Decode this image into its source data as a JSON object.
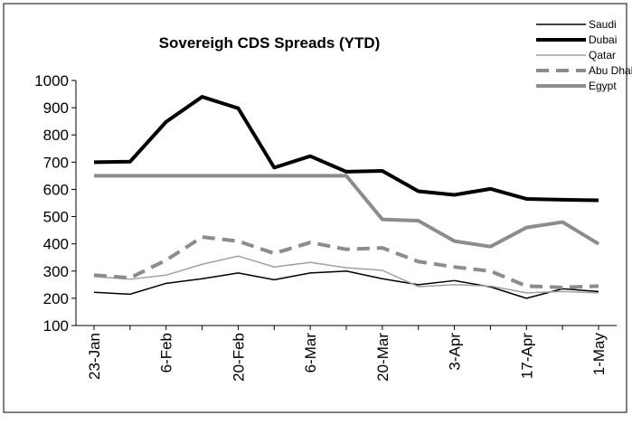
{
  "chart_data": {
    "type": "line",
    "title": "Sovereigh CDS Spreads (YTD)",
    "categories": [
      "23-Jan",
      null,
      "6-Feb",
      null,
      "20-Feb",
      null,
      "6-Mar",
      null,
      "20-Mar",
      null,
      "3-Apr",
      null,
      "17-Apr",
      null,
      "1-May"
    ],
    "series": [
      {
        "name": "Saudi",
        "color": "#000000",
        "width": 1.5,
        "dash": false,
        "values": [
          222,
          215,
          255,
          272,
          293,
          268,
          293,
          300,
          272,
          250,
          265,
          242,
          200,
          235,
          225
        ]
      },
      {
        "name": "Dubai",
        "color": "#000000",
        "width": 4,
        "dash": false,
        "values": [
          700,
          702,
          848,
          940,
          898,
          680,
          722,
          665,
          668,
          593,
          580,
          602,
          565,
          562,
          560
        ]
      },
      {
        "name": "Qatar",
        "color": "#a0a0a0",
        "width": 1.5,
        "dash": false,
        "values": [
          280,
          270,
          285,
          325,
          355,
          315,
          332,
          312,
          303,
          243,
          250,
          245,
          220,
          225,
          220
        ]
      },
      {
        "name": "Abu Dhabi",
        "color": "#8c8c8c",
        "width": 4,
        "dash": true,
        "values": [
          285,
          275,
          340,
          425,
          410,
          365,
          405,
          380,
          385,
          335,
          315,
          300,
          245,
          240,
          245
        ]
      },
      {
        "name": "Egypt",
        "color": "#8c8c8c",
        "width": 4,
        "dash": false,
        "values": [
          650,
          650,
          650,
          650,
          650,
          650,
          650,
          650,
          490,
          485,
          410,
          390,
          460,
          480,
          400
        ]
      }
    ],
    "ylim": [
      100,
      1000
    ],
    "yticks": [
      100,
      200,
      300,
      400,
      500,
      600,
      700,
      800,
      900,
      1000
    ]
  }
}
